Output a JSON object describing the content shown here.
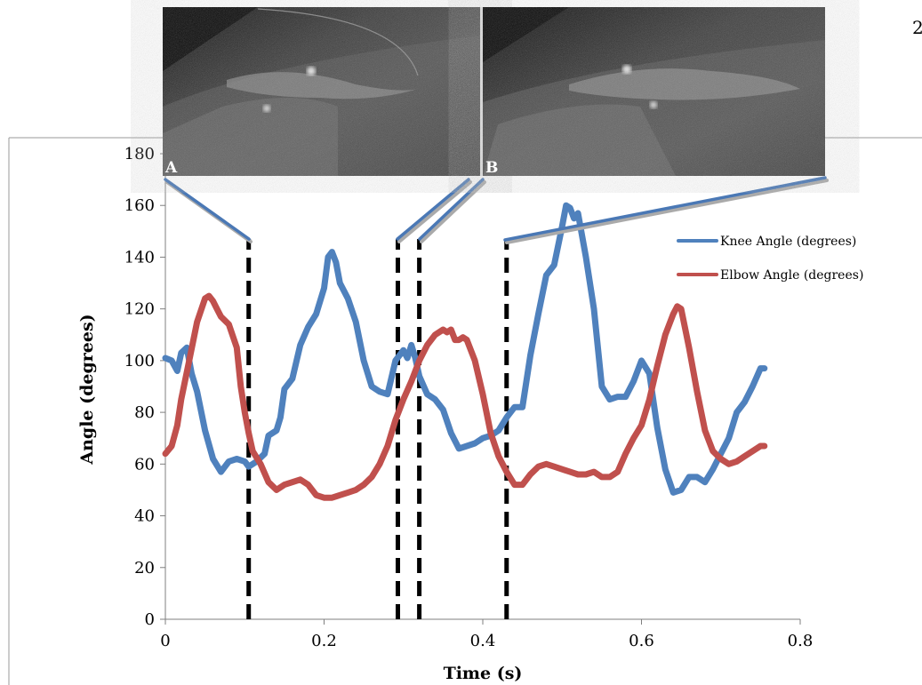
{
  "page_number": "2",
  "chart_data": {
    "type": "line",
    "title": "",
    "xlabel": "Time (s)",
    "ylabel": "Angle (degrees)",
    "xlim": [
      0,
      0.8
    ],
    "ylim": [
      0,
      180
    ],
    "xticks": [
      0,
      0.2,
      0.4,
      0.6,
      0.8
    ],
    "yticks": [
      0,
      20,
      40,
      60,
      80,
      100,
      120,
      140,
      160,
      180
    ],
    "grid": false,
    "legend_position": "top-right",
    "series": [
      {
        "name": "Knee Angle (degrees)",
        "color": "#4f81bd",
        "x": [
          0,
          0.008,
          0.015,
          0.02,
          0.027,
          0.033,
          0.04,
          0.05,
          0.06,
          0.07,
          0.08,
          0.09,
          0.1,
          0.105,
          0.11,
          0.115,
          0.125,
          0.13,
          0.14,
          0.145,
          0.15,
          0.16,
          0.17,
          0.18,
          0.19,
          0.2,
          0.205,
          0.21,
          0.215,
          0.22,
          0.23,
          0.24,
          0.25,
          0.26,
          0.27,
          0.28,
          0.29,
          0.3,
          0.305,
          0.31,
          0.315,
          0.32,
          0.33,
          0.34,
          0.35,
          0.36,
          0.37,
          0.38,
          0.39,
          0.4,
          0.41,
          0.42,
          0.43,
          0.44,
          0.45,
          0.46,
          0.47,
          0.48,
          0.49,
          0.5,
          0.505,
          0.51,
          0.515,
          0.52,
          0.53,
          0.54,
          0.55,
          0.56,
          0.57,
          0.58,
          0.59,
          0.6,
          0.61,
          0.62,
          0.63,
          0.64,
          0.65,
          0.66,
          0.67,
          0.68,
          0.69,
          0.7,
          0.71,
          0.72,
          0.73,
          0.74,
          0.75,
          0.755
        ],
        "y": [
          101,
          100,
          96,
          103,
          105,
          95,
          88,
          73,
          62,
          57,
          61,
          62,
          61,
          59,
          60,
          61,
          64,
          71,
          73,
          78,
          89,
          93,
          106,
          113,
          118,
          128,
          140,
          142,
          138,
          130,
          124,
          115,
          100,
          90,
          88,
          87,
          100,
          104,
          101,
          106,
          101,
          94,
          87,
          85,
          81,
          72,
          66,
          67,
          68,
          70,
          71,
          73,
          78,
          82,
          82,
          102,
          118,
          133,
          137,
          152,
          160,
          159,
          155,
          157,
          140,
          120,
          90,
          85,
          86,
          86,
          92,
          100,
          95,
          74,
          58,
          49,
          50,
          55,
          55,
          53,
          58,
          64,
          70,
          80,
          84,
          90,
          97,
          97
        ]
      },
      {
        "name": "Elbow Angle (degrees)",
        "color": "#c0504d",
        "x": [
          0,
          0.008,
          0.015,
          0.02,
          0.03,
          0.04,
          0.05,
          0.055,
          0.06,
          0.065,
          0.07,
          0.08,
          0.09,
          0.095,
          0.1,
          0.105,
          0.11,
          0.12,
          0.13,
          0.14,
          0.15,
          0.16,
          0.17,
          0.18,
          0.19,
          0.2,
          0.21,
          0.22,
          0.23,
          0.24,
          0.25,
          0.26,
          0.27,
          0.28,
          0.29,
          0.3,
          0.31,
          0.32,
          0.33,
          0.34,
          0.35,
          0.355,
          0.36,
          0.365,
          0.37,
          0.375,
          0.38,
          0.39,
          0.4,
          0.41,
          0.42,
          0.43,
          0.44,
          0.45,
          0.46,
          0.47,
          0.48,
          0.49,
          0.5,
          0.51,
          0.52,
          0.53,
          0.54,
          0.55,
          0.56,
          0.57,
          0.58,
          0.59,
          0.6,
          0.61,
          0.62,
          0.63,
          0.64,
          0.645,
          0.65,
          0.66,
          0.67,
          0.68,
          0.69,
          0.7,
          0.71,
          0.72,
          0.73,
          0.74,
          0.75,
          0.755
        ],
        "y": [
          64,
          67,
          75,
          85,
          100,
          115,
          124,
          125,
          123,
          120,
          117,
          114,
          105,
          90,
          80,
          72,
          65,
          60,
          53,
          50,
          52,
          53,
          54,
          52,
          48,
          47,
          47,
          48,
          49,
          50,
          52,
          55,
          60,
          67,
          77,
          85,
          92,
          100,
          106,
          110,
          112,
          111,
          112,
          108,
          108,
          109,
          108,
          100,
          87,
          72,
          63,
          57,
          52,
          52,
          56,
          59,
          60,
          59,
          58,
          57,
          56,
          56,
          57,
          55,
          55,
          57,
          64,
          70,
          75,
          85,
          98,
          110,
          118,
          121,
          120,
          105,
          88,
          73,
          65,
          62,
          60,
          61,
          63,
          65,
          67,
          67
        ]
      }
    ],
    "event_markers_x": [
      0.105,
      0.293,
      0.32,
      0.43
    ],
    "insets": [
      {
        "label": "A"
      },
      {
        "label": "B"
      }
    ]
  }
}
